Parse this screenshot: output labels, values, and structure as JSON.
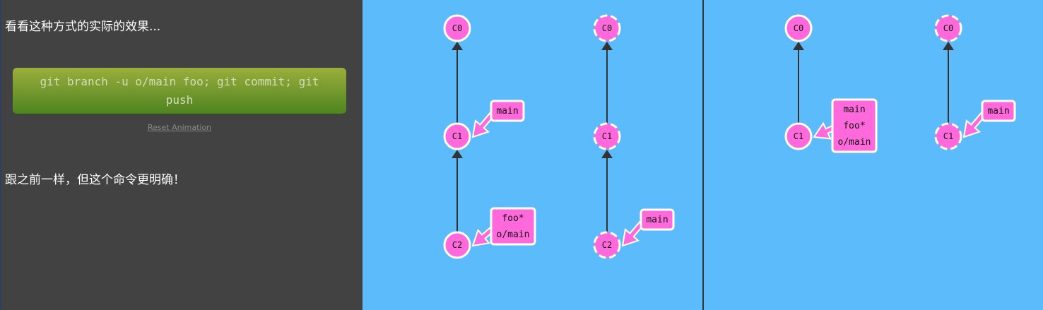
{
  "instructions": {
    "intro": "看看这种方式的实际的效果...",
    "command": "git branch -u o/main foo; git commit; git push",
    "reset_label": "Reset Animation",
    "outro": "跟之前一样，但这个命令更明确！"
  },
  "colors": {
    "background": "#5cbbfb",
    "node_fill": "#ff69dc",
    "node_stroke": "#ffffff",
    "edge": "#333333",
    "divider": "#333333",
    "panel": "#424242"
  },
  "before": {
    "local": {
      "commits": [
        {
          "id": "C0"
        },
        {
          "id": "C1",
          "parent": "C0"
        },
        {
          "id": "C2",
          "parent": "C1"
        }
      ],
      "branches": [
        {
          "target": "C1",
          "lines": [
            "main"
          ]
        },
        {
          "target": "C2",
          "lines": [
            "foo*",
            "o/main"
          ]
        }
      ]
    },
    "remote": {
      "commits": [
        {
          "id": "C0"
        },
        {
          "id": "C1",
          "parent": "C0"
        },
        {
          "id": "C2",
          "parent": "C1"
        }
      ],
      "branches": [
        {
          "target": "C2",
          "lines": [
            "main"
          ]
        }
      ]
    }
  },
  "after": {
    "local": {
      "commits": [
        {
          "id": "C0"
        },
        {
          "id": "C1",
          "parent": "C0"
        }
      ],
      "branches": [
        {
          "target": "C1",
          "lines": [
            "main",
            "foo*",
            "o/main"
          ]
        }
      ]
    },
    "remote": {
      "commits": [
        {
          "id": "C0"
        },
        {
          "id": "C1",
          "parent": "C0"
        }
      ],
      "branches": [
        {
          "target": "C1",
          "lines": [
            "main"
          ]
        }
      ]
    }
  }
}
